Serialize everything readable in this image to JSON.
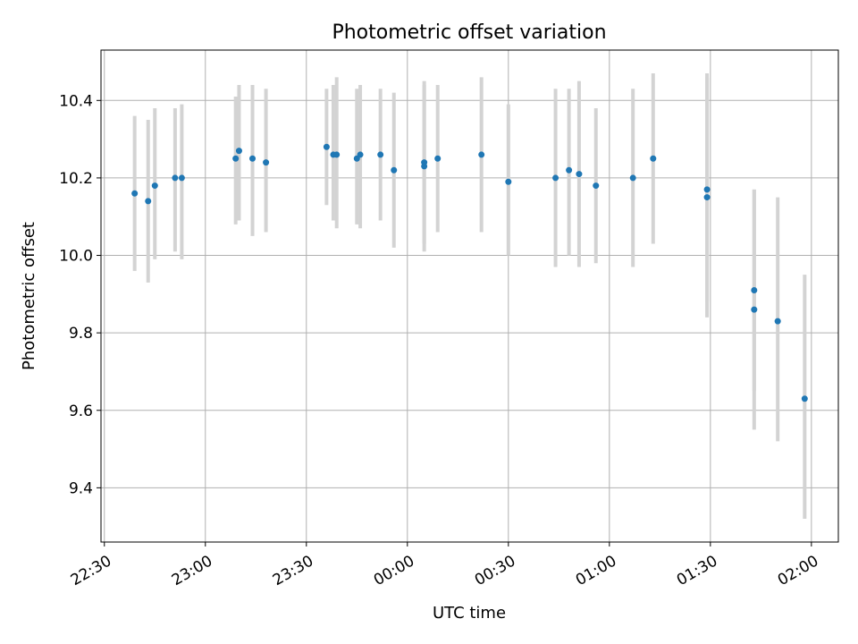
{
  "chart_data": {
    "type": "scatter",
    "title": "Photometric offset variation",
    "xlabel": "UTC time",
    "ylabel": "Photometric offset",
    "grid": true,
    "xlim": [
      "22:29",
      "02:08"
    ],
    "ylim": [
      9.26,
      10.53
    ],
    "x_ticks": [
      "22:30",
      "23:00",
      "23:30",
      "00:00",
      "00:30",
      "01:00",
      "01:30",
      "02:00"
    ],
    "y_ticks": [
      "9.4",
      "9.6",
      "9.8",
      "10.0",
      "10.2",
      "10.4"
    ],
    "colors": {
      "points": "#1f77b4",
      "errorbars": "#d3d3d3",
      "grid": "#b0b0b0"
    },
    "series": [
      {
        "marker": "point",
        "errorbars": true,
        "points": [
          {
            "t": "22:39",
            "y": 10.16,
            "lo": 9.96,
            "hi": 10.36
          },
          {
            "t": "22:43",
            "y": 10.14,
            "lo": 9.93,
            "hi": 10.35
          },
          {
            "t": "22:45",
            "y": 10.18,
            "lo": 9.99,
            "hi": 10.38
          },
          {
            "t": "22:51",
            "y": 10.2,
            "lo": 10.01,
            "hi": 10.38
          },
          {
            "t": "22:53",
            "y": 10.2,
            "lo": 9.99,
            "hi": 10.39
          },
          {
            "t": "23:09",
            "y": 10.25,
            "lo": 10.08,
            "hi": 10.41
          },
          {
            "t": "23:10",
            "y": 10.27,
            "lo": 10.09,
            "hi": 10.44
          },
          {
            "t": "23:14",
            "y": 10.25,
            "lo": 10.05,
            "hi": 10.44
          },
          {
            "t": "23:18",
            "y": 10.24,
            "lo": 10.06,
            "hi": 10.43
          },
          {
            "t": "23:36",
            "y": 10.28,
            "lo": 10.13,
            "hi": 10.43
          },
          {
            "t": "23:38",
            "y": 10.26,
            "lo": 10.09,
            "hi": 10.44
          },
          {
            "t": "23:39",
            "y": 10.26,
            "lo": 10.07,
            "hi": 10.46
          },
          {
            "t": "23:45",
            "y": 10.25,
            "lo": 10.08,
            "hi": 10.43
          },
          {
            "t": "23:46",
            "y": 10.26,
            "lo": 10.07,
            "hi": 10.44
          },
          {
            "t": "23:52",
            "y": 10.26,
            "lo": 10.09,
            "hi": 10.43
          },
          {
            "t": "23:56",
            "y": 10.22,
            "lo": 10.02,
            "hi": 10.42
          },
          {
            "t": "00:05",
            "y": 10.23,
            "lo": 10.01,
            "hi": 10.45
          },
          {
            "t": "00:05",
            "y": 10.24,
            "lo": 10.03,
            "hi": 10.44
          },
          {
            "t": "00:09",
            "y": 10.25,
            "lo": 10.06,
            "hi": 10.44
          },
          {
            "t": "00:22",
            "y": 10.26,
            "lo": 10.06,
            "hi": 10.46
          },
          {
            "t": "00:30",
            "y": 10.19,
            "lo": 10.0,
            "hi": 10.39
          },
          {
            "t": "00:44",
            "y": 10.2,
            "lo": 9.97,
            "hi": 10.43
          },
          {
            "t": "00:48",
            "y": 10.22,
            "lo": 10.0,
            "hi": 10.43
          },
          {
            "t": "00:51",
            "y": 10.21,
            "lo": 9.97,
            "hi": 10.45
          },
          {
            "t": "00:56",
            "y": 10.18,
            "lo": 9.98,
            "hi": 10.38
          },
          {
            "t": "01:07",
            "y": 10.2,
            "lo": 9.97,
            "hi": 10.43
          },
          {
            "t": "01:13",
            "y": 10.25,
            "lo": 10.03,
            "hi": 10.47
          },
          {
            "t": "01:29",
            "y": 10.17,
            "lo": 9.88,
            "hi": 10.47
          },
          {
            "t": "01:29",
            "y": 10.15,
            "lo": 9.84,
            "hi": 10.46
          },
          {
            "t": "01:43",
            "y": 9.91,
            "lo": 9.65,
            "hi": 10.17
          },
          {
            "t": "01:43",
            "y": 9.86,
            "lo": 9.55,
            "hi": 10.17
          },
          {
            "t": "01:50",
            "y": 9.83,
            "lo": 9.52,
            "hi": 10.15
          },
          {
            "t": "01:58",
            "y": 9.63,
            "lo": 9.32,
            "hi": 9.95
          }
        ]
      }
    ]
  }
}
